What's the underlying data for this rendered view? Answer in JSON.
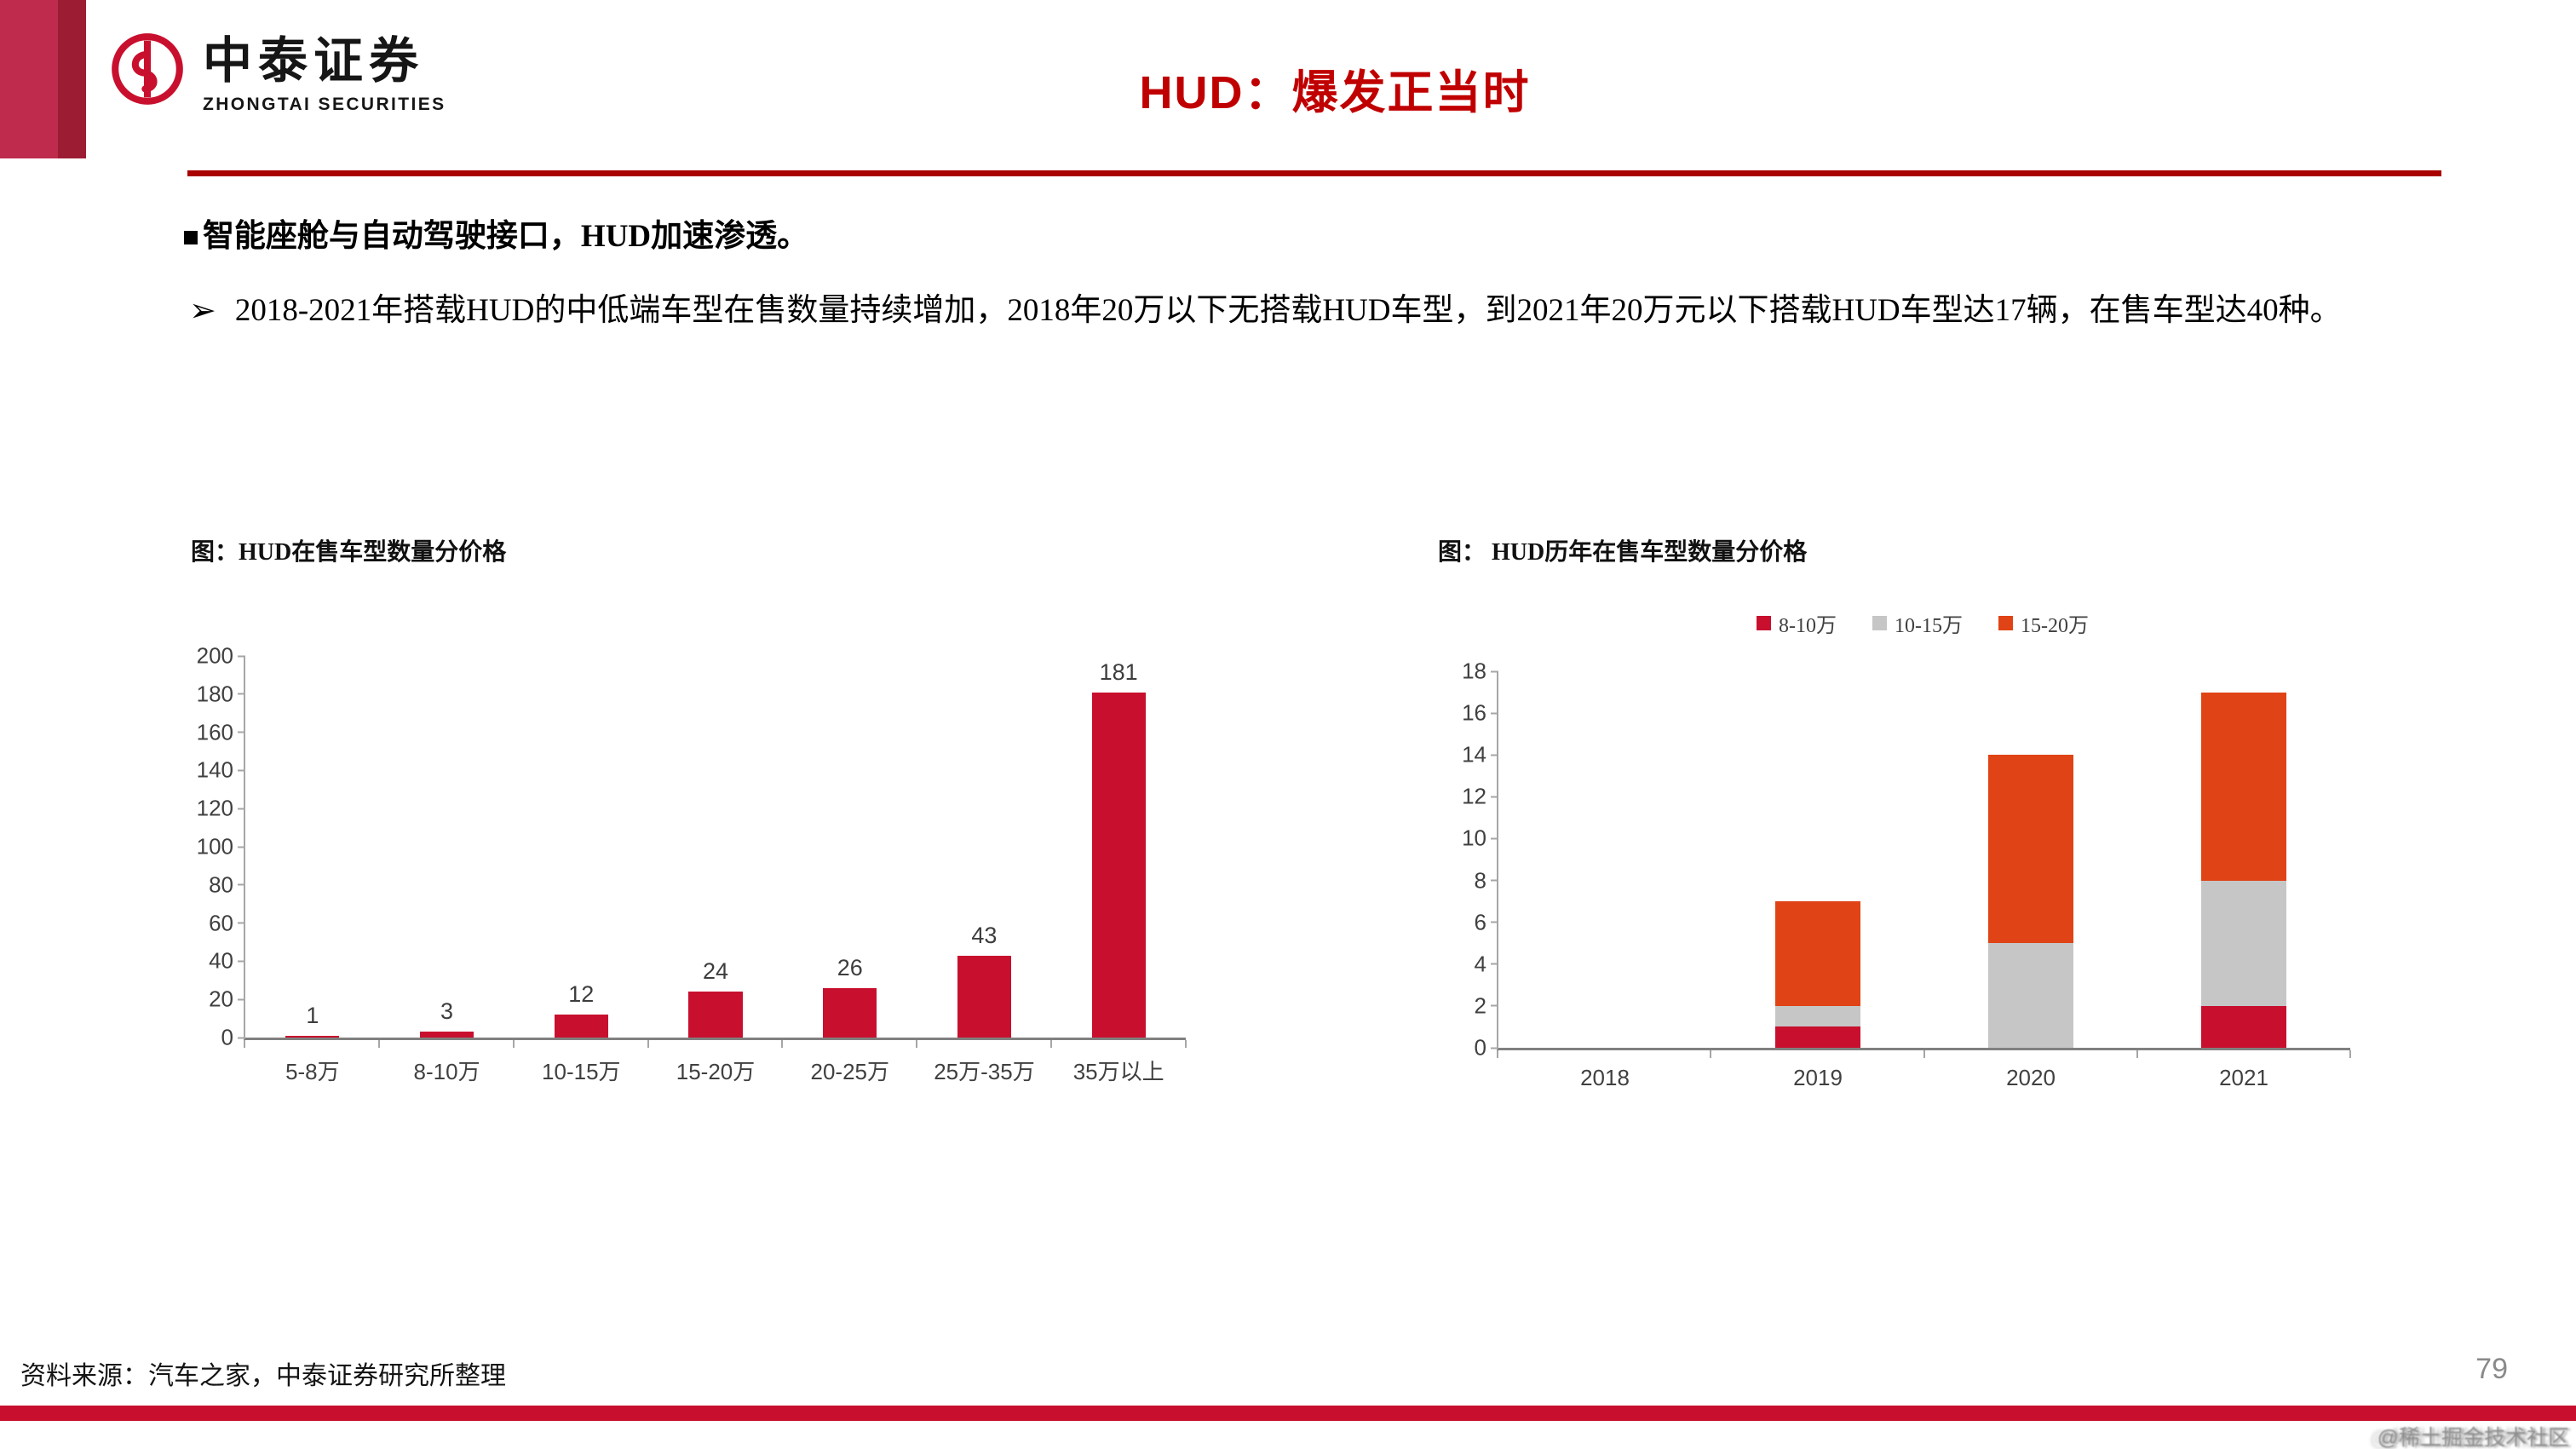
{
  "brand": {
    "logo_cn": "中泰证券",
    "logo_en": "ZHONGTAI SECURITIES"
  },
  "header": {
    "title": "HUD：爆发正当时"
  },
  "bullets": {
    "heading_marker": "■",
    "heading": "智能座舱与自动驾驶接口，HUD加速渗透。",
    "point_marker": "➢",
    "point": "2018-2021年搭载HUD的中低端车型在售数量持续增加，2018年20万以下无搭载HUD车型，到2021年20万元以下搭载HUD车型达17辆，在售车型达40种。"
  },
  "chart_data": [
    {
      "type": "bar",
      "title": "图：HUD在售车型数量分价格",
      "categories": [
        "5-8万",
        "8-10万",
        "10-15万",
        "15-20万",
        "20-25万",
        "25万-35万",
        "35万以上"
      ],
      "values": [
        1,
        3,
        12,
        24,
        26,
        43,
        181
      ],
      "bar_color": "#c8102e",
      "xlabel": "",
      "ylabel": "",
      "ylim": [
        0,
        200
      ],
      "ytick_step": 20,
      "grid": false,
      "data_labels": true,
      "legend_position": "none"
    },
    {
      "type": "stacked-bar",
      "title": "图： HUD历年在售车型数量分价格",
      "categories": [
        "2018",
        "2019",
        "2020",
        "2021"
      ],
      "series": [
        {
          "name": "8-10万",
          "color": "#c8102e",
          "values": [
            0,
            1,
            0,
            2
          ]
        },
        {
          "name": "10-15万",
          "color": "#c6c6c6",
          "values": [
            0,
            1,
            5,
            6
          ]
        },
        {
          "name": "15-20万",
          "color": "#e04315",
          "values": [
            0,
            5,
            9,
            9
          ]
        }
      ],
      "totals": [
        0,
        7,
        14,
        17
      ],
      "xlabel": "",
      "ylabel": "",
      "ylim": [
        0,
        18
      ],
      "ytick_step": 2,
      "grid": false,
      "data_labels": false,
      "legend_position": "top"
    }
  ],
  "footer": {
    "source": "资料来源：汽车之家，中泰证券研究所整理",
    "page_number": "79",
    "watermark": "@稀土掘金技术社区"
  },
  "colors": {
    "brand_red": "#c8102e",
    "title_red": "#c00000",
    "header_line_red": "#a90000",
    "sidebar_light": "#be2b4d",
    "sidebar_dark": "#9c1c33",
    "chart_red": "#c8102e",
    "chart_gray": "#c6c6c6",
    "chart_orange": "#e04315",
    "axis_gray": "#a6a6a6"
  }
}
